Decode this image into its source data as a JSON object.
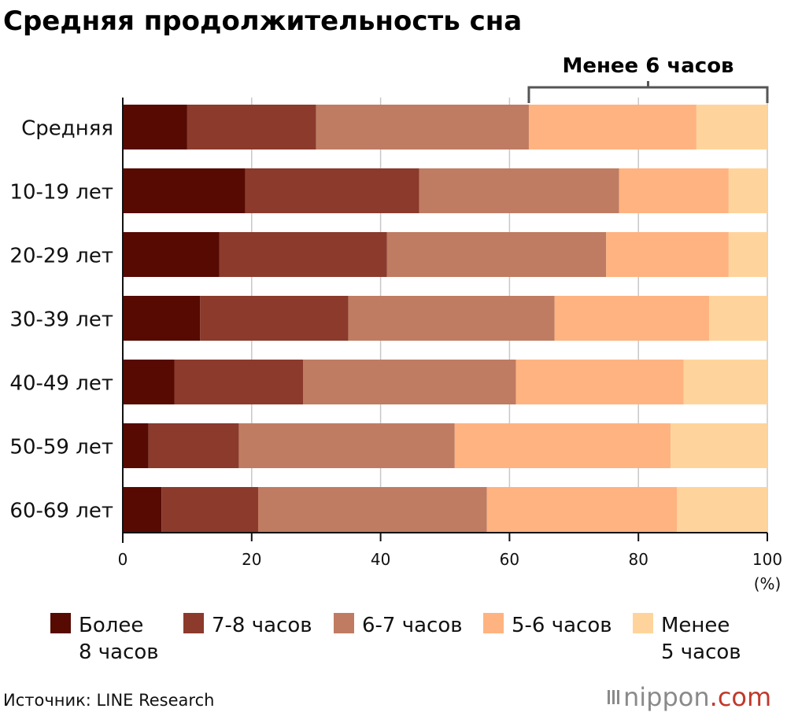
{
  "chart_data": {
    "type": "bar",
    "orientation": "horizontal",
    "stacked": true,
    "title": "Средняя продолжительность сна",
    "categories": [
      "Средняя",
      "10-19 лет",
      "20-29 лет",
      "30-39 лет",
      "40-49 лет",
      "50-59 лет",
      "60-69 лет"
    ],
    "series": [
      {
        "name": "Более\n8 часов",
        "color": "#560a02",
        "values": [
          10,
          19,
          15,
          12,
          8,
          4,
          6
        ]
      },
      {
        "name": "7-8 часов",
        "color": "#8b3a2c",
        "values": [
          20,
          27,
          26,
          23,
          20,
          14,
          15
        ]
      },
      {
        "name": "6-7 часов",
        "color": "#bf7c62",
        "values": [
          33,
          31,
          34,
          32,
          33,
          33.5,
          35.5
        ]
      },
      {
        "name": "5-6 часов",
        "color": "#ffb380",
        "values": [
          26,
          17,
          19,
          24,
          26,
          33.5,
          29.5
        ]
      },
      {
        "name": "Менее\n5 часов",
        "color": "#ffd49c",
        "values": [
          11,
          6,
          6,
          9,
          13,
          15,
          14
        ]
      }
    ],
    "xlim": [
      0,
      100
    ],
    "xticks": [
      0,
      20,
      40,
      60,
      80,
      100
    ],
    "xunit": "(%)",
    "grid": true,
    "legend_position": "bottom",
    "annotation": {
      "label": "Менее 6 часов",
      "from": 63,
      "to": 100
    }
  },
  "source": "Источник: LINE Research",
  "brand": {
    "name": "nippon",
    "suffix": ".com"
  }
}
